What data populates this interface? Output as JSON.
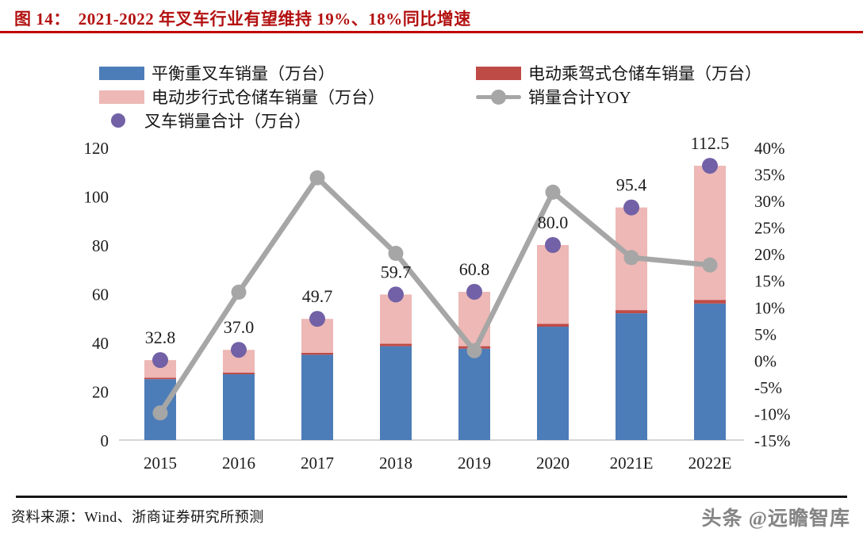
{
  "header": {
    "figure_label": "图  14：",
    "title": "2021-2022 年叉车行业有望维持 19%、18%同比增速",
    "accent_color": "#c00000"
  },
  "legend": {
    "items": [
      {
        "label": "平衡重叉车销量（万台）",
        "marker": "bar",
        "color": "#4d7db8"
      },
      {
        "label": "电动乘驾式仓储车销量（万台）",
        "marker": "bar",
        "color": "#bf4b47"
      },
      {
        "label": "电动步行式仓储车销量（万台）",
        "marker": "bar",
        "color": "#edb8b6"
      },
      {
        "label": "销量合计YOY",
        "marker": "line",
        "color": "#a6a6a6"
      },
      {
        "label": "叉车销量合计（万台）",
        "marker": "dot",
        "color": "#7261a6"
      }
    ]
  },
  "chart_data": {
    "type": "bar",
    "subtype": "stacked-bars-with-line-overlay",
    "categories": [
      "2015",
      "2016",
      "2017",
      "2018",
      "2019",
      "2020",
      "2021E",
      "2022E"
    ],
    "series": [
      {
        "name": "平衡重叉车销量（万台）",
        "type": "bar",
        "stack": true,
        "axis": "left",
        "color": "#4d7db8",
        "values": [
          25.0,
          27.0,
          35.0,
          38.5,
          37.5,
          46.5,
          52.0,
          56.0
        ]
      },
      {
        "name": "电动乘驾式仓储车销量（万台）",
        "type": "bar",
        "stack": true,
        "axis": "left",
        "color": "#bf4b47",
        "values": [
          0.6,
          0.7,
          0.8,
          1.0,
          1.0,
          1.2,
          1.3,
          1.5
        ]
      },
      {
        "name": "电动步行式仓储车销量（万台）",
        "type": "bar",
        "stack": true,
        "axis": "left",
        "color": "#edb8b6",
        "values": [
          7.2,
          9.3,
          13.9,
          20.2,
          22.3,
          32.3,
          42.1,
          55.0
        ]
      },
      {
        "name": "叉车销量合计（万台）",
        "type": "scatter",
        "axis": "left",
        "color": "#7261a6",
        "values": [
          32.8,
          37.0,
          49.7,
          59.7,
          60.8,
          80.0,
          95.4,
          112.5
        ]
      },
      {
        "name": "销量合计YOY",
        "type": "line",
        "axis": "right",
        "color": "#a6a6a6",
        "values": [
          -9.9,
          12.8,
          34.3,
          20.1,
          1.8,
          31.6,
          19.3,
          17.9
        ]
      }
    ],
    "data_labels": [
      "32.8",
      "37.0",
      "49.7",
      "59.7",
      "60.8",
      "80.0",
      "95.4",
      "112.5"
    ],
    "left_axis": {
      "min": 0,
      "max": 120,
      "step": 20,
      "ticks": [
        "0",
        "20",
        "40",
        "60",
        "80",
        "100",
        "120"
      ]
    },
    "right_axis": {
      "min": -15,
      "max": 40,
      "step": 5,
      "format": "percent",
      "ticks": [
        "40%",
        "35%",
        "30%",
        "25%",
        "20%",
        "15%",
        "10%",
        "5%",
        "0%",
        "-5%",
        "-10%",
        "-15%"
      ]
    },
    "grid": false,
    "legend_position": "top"
  },
  "footer": {
    "source": "资料来源：Wind、浙商证券研究所预测",
    "watermark": "头条 @远瞻智库"
  }
}
